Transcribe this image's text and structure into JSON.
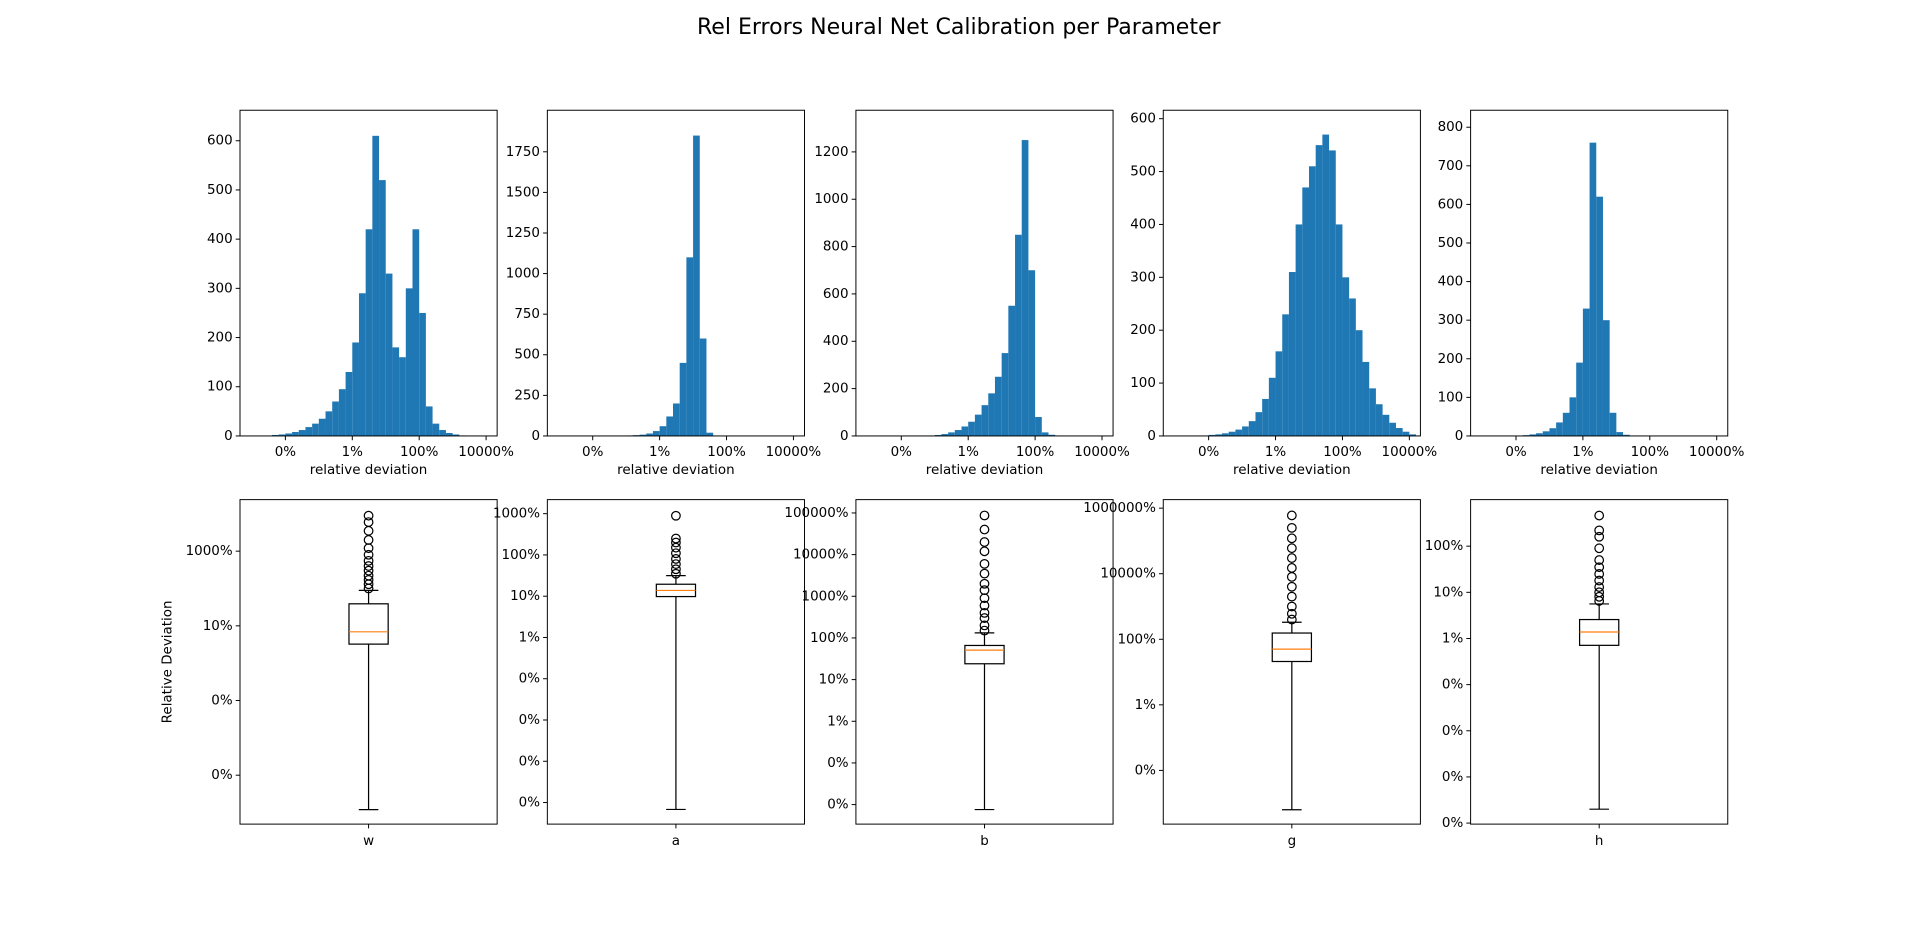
{
  "title": "Rel Errors Neural Net Calibration per Parameter",
  "chart_data": [
    {
      "type": "histogram",
      "xscale": "log",
      "xlabel": "relative deviation",
      "color": "#1f77b4",
      "bins": [
        1e-05,
        1.585e-05,
        2.512e-05,
        3.981e-05,
        6.31e-05,
        0.0001,
        0.0001585,
        0.0002512,
        0.0003981,
        0.000631,
        0.001,
        0.001585,
        0.002512,
        0.003981,
        0.00631,
        0.01,
        0.01585,
        0.02512,
        0.03981,
        0.0631,
        0.1,
        0.1585,
        0.2512,
        0.3981,
        0.631,
        1,
        1.585,
        2.512,
        3.981,
        6.31,
        10,
        15.85,
        25.12,
        39.81,
        63.1,
        100,
        158.5
      ],
      "values": [
        0,
        0,
        0,
        2,
        3,
        5,
        8,
        12,
        18,
        25,
        35,
        50,
        70,
        95,
        130,
        190,
        290,
        420,
        610,
        520,
        330,
        180,
        160,
        300,
        420,
        250,
        60,
        25,
        12,
        6,
        3,
        1,
        0,
        0,
        0,
        0
      ],
      "xlim": [
        4.4e-06,
        214
      ],
      "xticks": [
        {
          "value": 0.0001,
          "label": "0%"
        },
        {
          "value": 0.01,
          "label": "1%"
        },
        {
          "value": 1,
          "label": "100%"
        },
        {
          "value": 100,
          "label": "10000%"
        }
      ],
      "ylim": [
        0,
        662
      ],
      "yticks": [
        0,
        100,
        200,
        300,
        400,
        500,
        600
      ]
    },
    {
      "type": "histogram",
      "xscale": "log",
      "xlabel": "relative deviation",
      "color": "#1f77b4",
      "bins": [
        1e-05,
        1.585e-05,
        2.512e-05,
        3.981e-05,
        6.31e-05,
        0.0001,
        0.0001585,
        0.0002512,
        0.0003981,
        0.000631,
        0.001,
        0.001585,
        0.002512,
        0.003981,
        0.00631,
        0.01,
        0.01585,
        0.02512,
        0.03981,
        0.0631,
        0.1,
        0.1585,
        0.2512,
        0.3981,
        0.631,
        1,
        1.585,
        2.512,
        3.981,
        6.31,
        10,
        15.85,
        25.12,
        39.81,
        63.1,
        100,
        158.5
      ],
      "values": [
        0,
        0,
        0,
        0,
        0,
        0,
        0,
        0,
        1,
        2,
        3,
        5,
        8,
        15,
        30,
        60,
        120,
        200,
        450,
        1100,
        1850,
        600,
        20,
        2,
        0,
        0,
        0,
        0,
        0,
        0,
        0,
        0,
        0,
        0,
        0,
        0
      ],
      "xlim": [
        4.4e-06,
        214
      ],
      "xticks": [
        {
          "value": 0.0001,
          "label": "0%"
        },
        {
          "value": 0.01,
          "label": "1%"
        },
        {
          "value": 1,
          "label": "100%"
        },
        {
          "value": 100,
          "label": "10000%"
        }
      ],
      "ylim": [
        0,
        2006
      ],
      "yticks": [
        0,
        250,
        500,
        750,
        1000,
        1250,
        1500,
        1750
      ]
    },
    {
      "type": "histogram",
      "xscale": "log",
      "xlabel": "relative deviation",
      "color": "#1f77b4",
      "bins": [
        1e-05,
        1.585e-05,
        2.512e-05,
        3.981e-05,
        6.31e-05,
        0.0001,
        0.0001585,
        0.0002512,
        0.0003981,
        0.000631,
        0.001,
        0.001585,
        0.002512,
        0.003981,
        0.00631,
        0.01,
        0.01585,
        0.02512,
        0.03981,
        0.0631,
        0.1,
        0.1585,
        0.2512,
        0.3981,
        0.631,
        1,
        1.585,
        2.512,
        3.981,
        6.31,
        10,
        15.85,
        25.12,
        39.81,
        63.1,
        100,
        158.5
      ],
      "values": [
        0,
        0,
        0,
        0,
        0,
        0,
        0,
        0,
        1,
        2,
        4,
        8,
        15,
        25,
        40,
        60,
        90,
        130,
        180,
        250,
        350,
        550,
        850,
        1250,
        700,
        80,
        15,
        5,
        2,
        0,
        0,
        0,
        0,
        0,
        0,
        0
      ],
      "xlim": [
        4.4e-06,
        214
      ],
      "xticks": [
        {
          "value": 0.0001,
          "label": "0%"
        },
        {
          "value": 0.01,
          "label": "1%"
        },
        {
          "value": 1,
          "label": "100%"
        },
        {
          "value": 100,
          "label": "10000%"
        }
      ],
      "ylim": [
        0,
        1376
      ],
      "yticks": [
        0,
        200,
        400,
        600,
        800,
        1000,
        1200
      ]
    },
    {
      "type": "histogram",
      "xscale": "log",
      "xlabel": "relative deviation",
      "color": "#1f77b4",
      "bins": [
        1e-05,
        1.585e-05,
        2.512e-05,
        3.981e-05,
        6.31e-05,
        0.0001,
        0.0001585,
        0.0002512,
        0.0003981,
        0.000631,
        0.001,
        0.001585,
        0.002512,
        0.003981,
        0.00631,
        0.01,
        0.01585,
        0.02512,
        0.03981,
        0.0631,
        0.1,
        0.1585,
        0.2512,
        0.3981,
        0.631,
        1,
        1.585,
        2.512,
        3.981,
        6.31,
        10,
        15.85,
        25.12,
        39.81,
        63.1,
        100,
        158.5
      ],
      "values": [
        0,
        0,
        0,
        0,
        0,
        2,
        3,
        5,
        8,
        12,
        18,
        28,
        45,
        70,
        110,
        160,
        230,
        310,
        400,
        470,
        510,
        550,
        570,
        540,
        400,
        300,
        260,
        200,
        140,
        90,
        60,
        40,
        25,
        15,
        8,
        3
      ],
      "xlim": [
        4.4e-06,
        214
      ],
      "xticks": [
        {
          "value": 0.0001,
          "label": "0%"
        },
        {
          "value": 0.01,
          "label": "1%"
        },
        {
          "value": 1,
          "label": "100%"
        },
        {
          "value": 100,
          "label": "10000%"
        }
      ],
      "ylim": [
        0,
        616
      ],
      "yticks": [
        0,
        100,
        200,
        300,
        400,
        500,
        600
      ]
    },
    {
      "type": "histogram",
      "xscale": "log",
      "xlabel": "relative deviation",
      "color": "#1f77b4",
      "bins": [
        1e-05,
        1.585e-05,
        2.512e-05,
        3.981e-05,
        6.31e-05,
        0.0001,
        0.0001585,
        0.0002512,
        0.0003981,
        0.000631,
        0.001,
        0.001585,
        0.002512,
        0.003981,
        0.00631,
        0.01,
        0.01585,
        0.02512,
        0.03981,
        0.0631,
        0.1,
        0.1585,
        0.2512,
        0.3981,
        0.631,
        1,
        1.585,
        2.512,
        3.981,
        6.31,
        10,
        15.85,
        25.12,
        39.81,
        63.1,
        100,
        158.5
      ],
      "values": [
        0,
        0,
        0,
        0,
        0,
        1,
        2,
        4,
        7,
        12,
        20,
        35,
        60,
        100,
        190,
        330,
        760,
        620,
        300,
        60,
        10,
        3,
        1,
        0,
        0,
        0,
        0,
        0,
        0,
        0,
        0,
        0,
        0,
        0,
        0,
        0
      ],
      "xlim": [
        4.4e-06,
        214
      ],
      "xticks": [
        {
          "value": 0.0001,
          "label": "0%"
        },
        {
          "value": 0.01,
          "label": "1%"
        },
        {
          "value": 1,
          "label": "100%"
        },
        {
          "value": 100,
          "label": "10000%"
        }
      ],
      "ylim": [
        0,
        844
      ],
      "yticks": [
        0,
        100,
        200,
        300,
        400,
        500,
        600,
        700,
        800
      ]
    },
    {
      "type": "box",
      "yscale": "log",
      "ylabel": "Relative Deviation",
      "categories": [
        "w"
      ],
      "median_color": "#ff7f0e",
      "boxes": [
        {
          "whisker_low": 1.2e-06,
          "q1": 0.0324,
          "median": 0.0692,
          "q3": 0.389,
          "whisker_high": 0.891,
          "outliers": [
            1.0,
            1.3,
            1.7,
            2.2,
            3.0,
            4.0,
            5.5,
            8,
            12,
            20,
            35,
            60,
            89
          ]
        }
      ],
      "ylim": [
        4.9e-07,
        240
      ],
      "yticks": [
        {
          "value": 10,
          "label": "1000%"
        },
        {
          "value": 0.1,
          "label": "10%"
        },
        {
          "value": 0.001,
          "label": "0%"
        },
        {
          "value": 1e-05,
          "label": "0%"
        }
      ]
    },
    {
      "type": "box",
      "yscale": "log",
      "categories": [
        "a"
      ],
      "median_color": "#ff7f0e",
      "boxes": [
        {
          "whisker_low": 6.8e-07,
          "q1": 0.098,
          "median": 0.138,
          "q3": 0.195,
          "whisker_high": 0.316,
          "outliers": [
            0.35,
            0.45,
            0.6,
            0.8,
            1.1,
            1.5,
            2.0,
            2.5,
            8.9
          ]
        }
      ],
      "ylim": [
        3e-07,
        21.9
      ],
      "yticks": [
        {
          "value": 10,
          "label": "1000%"
        },
        {
          "value": 1,
          "label": "100%"
        },
        {
          "value": 0.1,
          "label": "10%"
        },
        {
          "value": 0.01,
          "label": "1%"
        },
        {
          "value": 0.001,
          "label": "0%"
        },
        {
          "value": 0.0001,
          "label": "0%"
        },
        {
          "value": 1e-05,
          "label": "0%"
        },
        {
          "value": 1e-06,
          "label": "0%"
        }
      ]
    },
    {
      "type": "box",
      "yscale": "log",
      "categories": [
        "b"
      ],
      "median_color": "#ff7f0e",
      "boxes": [
        {
          "whisker_low": 7.6e-05,
          "q1": 0.24,
          "median": 0.51,
          "q3": 0.66,
          "whisker_high": 1.32,
          "outliers": [
            1.5,
            2,
            3,
            4,
            6,
            9,
            14,
            20,
            35,
            60,
            120,
            200,
            400,
            870
          ]
        }
      ],
      "ylim": [
        3.4e-05,
        2090
      ],
      "yticks": [
        {
          "value": 1000,
          "label": "100000%"
        },
        {
          "value": 100,
          "label": "10000%"
        },
        {
          "value": 10,
          "label": "1000%"
        },
        {
          "value": 1,
          "label": "100%"
        },
        {
          "value": 0.1,
          "label": "10%"
        },
        {
          "value": 0.01,
          "label": "1%"
        },
        {
          "value": 0.001,
          "label": "0%"
        },
        {
          "value": 0.0001,
          "label": "0%"
        }
      ]
    },
    {
      "type": "box",
      "yscale": "log",
      "categories": [
        "g"
      ],
      "median_color": "#ff7f0e",
      "boxes": [
        {
          "whisker_low": 6.3e-06,
          "q1": 0.21,
          "median": 0.5,
          "q3": 1.55,
          "whisker_high": 3.3,
          "outliers": [
            4,
            6,
            10,
            20,
            40,
            80,
            150,
            300,
            600,
            1200,
            2500,
            6000
          ]
        }
      ],
      "ylim": [
        2.3e-06,
        18200
      ],
      "yticks": [
        {
          "value": 10000,
          "label": "1000000%"
        },
        {
          "value": 100,
          "label": "10000%"
        },
        {
          "value": 1,
          "label": "100%"
        },
        {
          "value": 0.01,
          "label": "1%"
        },
        {
          "value": 0.0001,
          "label": "0%"
        }
      ]
    },
    {
      "type": "box",
      "yscale": "log",
      "categories": [
        "h"
      ],
      "median_color": "#ff7f0e",
      "boxes": [
        {
          "whisker_low": 2e-06,
          "q1": 0.0071,
          "median": 0.0138,
          "q3": 0.0257,
          "whisker_high": 0.056,
          "outliers": [
            0.065,
            0.08,
            0.1,
            0.13,
            0.18,
            0.25,
            0.35,
            0.5,
            0.9,
            1.6,
            2.2,
            4.6
          ]
        }
      ],
      "ylim": [
        9.5e-07,
        10.2
      ],
      "yticks": [
        {
          "value": 1,
          "label": "100%"
        },
        {
          "value": 0.1,
          "label": "10%"
        },
        {
          "value": 0.01,
          "label": "1%"
        },
        {
          "value": 0.001,
          "label": "0%"
        },
        {
          "value": 0.0001,
          "label": "0%"
        },
        {
          "value": 1e-05,
          "label": "0%"
        },
        {
          "value": 1e-06,
          "label": "0%"
        }
      ]
    }
  ]
}
